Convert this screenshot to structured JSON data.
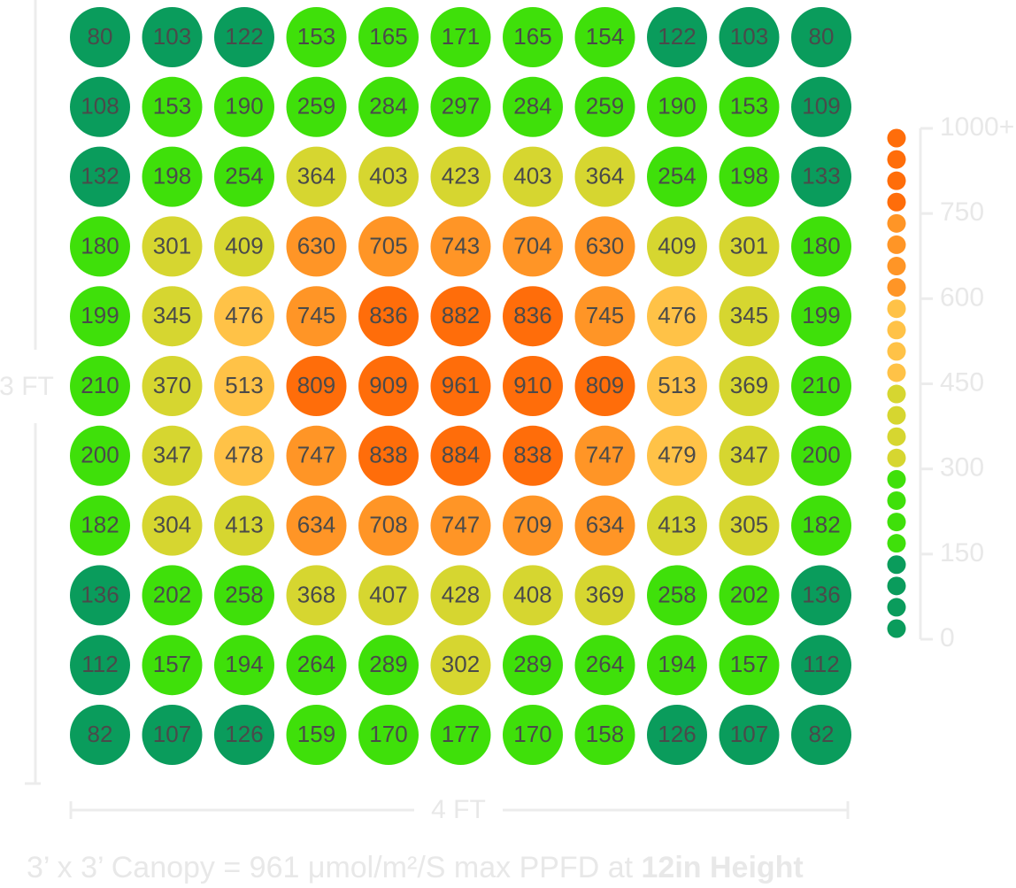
{
  "chart_data": {
    "type": "heatmap",
    "x_label": "4 FT",
    "y_label": "3 FT",
    "caption": "3’ x 3’ Canopy = 961 μmol/m²/S max PPFD at ",
    "caption_bold": "12in Height",
    "values": [
      [
        80,
        103,
        122,
        153,
        165,
        171,
        165,
        154,
        122,
        103,
        80
      ],
      [
        108,
        153,
        190,
        259,
        284,
        297,
        284,
        259,
        190,
        153,
        109
      ],
      [
        132,
        198,
        254,
        364,
        403,
        423,
        403,
        364,
        254,
        198,
        133
      ],
      [
        180,
        301,
        409,
        630,
        705,
        743,
        704,
        630,
        409,
        301,
        180
      ],
      [
        199,
        345,
        476,
        745,
        836,
        882,
        836,
        745,
        476,
        345,
        199
      ],
      [
        210,
        370,
        513,
        809,
        909,
        961,
        910,
        809,
        513,
        369,
        210
      ],
      [
        200,
        347,
        478,
        747,
        838,
        884,
        838,
        747,
        479,
        347,
        200
      ],
      [
        182,
        304,
        413,
        634,
        708,
        747,
        709,
        634,
        413,
        305,
        182
      ],
      [
        136,
        202,
        258,
        368,
        407,
        428,
        408,
        369,
        258,
        202,
        136
      ],
      [
        112,
        157,
        194,
        264,
        289,
        302,
        289,
        264,
        194,
        157,
        112
      ],
      [
        82,
        107,
        126,
        159,
        170,
        177,
        170,
        158,
        126,
        107,
        82
      ]
    ],
    "legend_ticks": [
      0,
      150,
      300,
      450,
      600,
      750,
      {
        "value": 1000,
        "label": "1000+"
      }
    ],
    "colors": [
      "#0a9c5c",
      "#3fe00a",
      "#d6d630",
      "#ffc247",
      "#ff9526",
      "#ff6d0a"
    ]
  }
}
